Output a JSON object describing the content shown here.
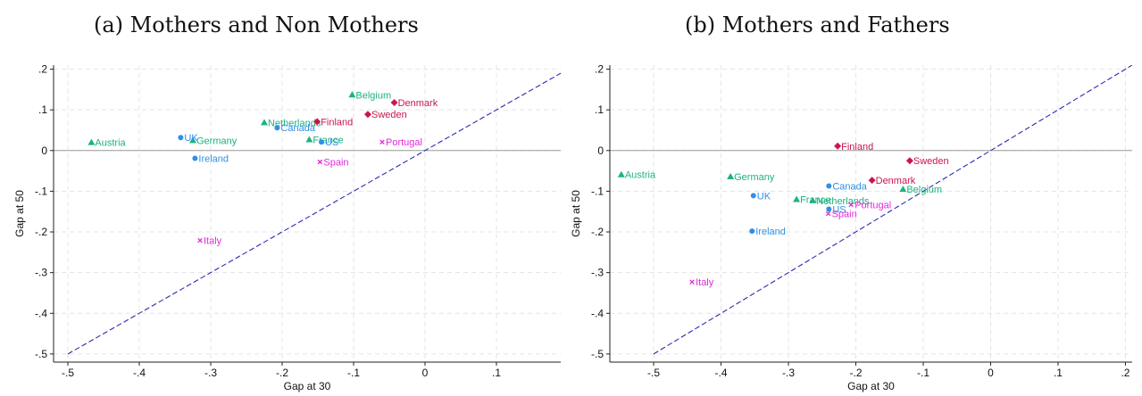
{
  "panels": [
    {
      "title": "(a) Mothers and Non Mothers"
    },
    {
      "title": "(b) Mothers and Fathers"
    }
  ],
  "colors": {
    "green": "#1bb37f",
    "blue": "#2f8fe6",
    "red": "#c8174c",
    "magenta": "#e12ad8",
    "diagonal": "#2b2bb0",
    "zero": "#9a9a9a",
    "grid": "#e4e4e4",
    "axis": "#222222"
  },
  "chart_data": [
    {
      "type": "scatter",
      "title": "(a) Mothers and Non Mothers",
      "xlabel": "Gap at 30",
      "ylabel": "Gap at 50",
      "xlim": [
        -0.52,
        0.19
      ],
      "ylim": [
        -0.52,
        0.21
      ],
      "xticks": [
        -0.5,
        -0.4,
        -0.3,
        -0.2,
        -0.1,
        0,
        0.1
      ],
      "xtick_labels": [
        "-.5",
        "-.4",
        "-.3",
        "-.2",
        "-.1",
        "0",
        ".1"
      ],
      "yticks": [
        -0.5,
        -0.4,
        -0.3,
        -0.2,
        -0.1,
        0,
        0.1,
        0.2
      ],
      "ytick_labels": [
        "-.5",
        "-.4",
        "-.3",
        "-.2",
        "-.1",
        "0",
        ".1",
        ".2"
      ],
      "grid": true,
      "zero_line": true,
      "diagonal_45": true,
      "points": [
        {
          "label": "Austria",
          "x": -0.467,
          "y": 0.02,
          "group": "green",
          "marker": "triangle"
        },
        {
          "label": "Belgium",
          "x": -0.102,
          "y": 0.137,
          "group": "green",
          "marker": "triangle"
        },
        {
          "label": "Netherlands",
          "x": -0.225,
          "y": 0.069,
          "group": "green",
          "marker": "triangle"
        },
        {
          "label": "Germany",
          "x": -0.325,
          "y": 0.025,
          "group": "green",
          "marker": "triangle"
        },
        {
          "label": "France",
          "x": -0.162,
          "y": 0.027,
          "group": "green",
          "marker": "triangle"
        },
        {
          "label": "UK",
          "x": -0.342,
          "y": 0.032,
          "group": "blue",
          "marker": "circle"
        },
        {
          "label": "Canada",
          "x": -0.207,
          "y": 0.056,
          "group": "blue",
          "marker": "circle"
        },
        {
          "label": "Ireland",
          "x": -0.322,
          "y": -0.019,
          "group": "blue",
          "marker": "circle"
        },
        {
          "label": "US",
          "x": -0.145,
          "y": 0.021,
          "group": "blue",
          "marker": "circle"
        },
        {
          "label": "Denmark",
          "x": -0.043,
          "y": 0.118,
          "group": "red",
          "marker": "diamond"
        },
        {
          "label": "Finland",
          "x": -0.151,
          "y": 0.071,
          "group": "red",
          "marker": "diamond"
        },
        {
          "label": "Sweden",
          "x": -0.08,
          "y": 0.089,
          "group": "red",
          "marker": "diamond"
        },
        {
          "label": "Portugal",
          "x": -0.06,
          "y": 0.021,
          "group": "magenta",
          "marker": "x"
        },
        {
          "label": "Spain",
          "x": -0.147,
          "y": -0.028,
          "group": "magenta",
          "marker": "x"
        },
        {
          "label": "Italy",
          "x": -0.315,
          "y": -0.221,
          "group": "magenta",
          "marker": "x"
        }
      ]
    },
    {
      "type": "scatter",
      "title": "(b) Mothers and Fathers",
      "xlabel": "Gap at 30",
      "ylabel": "Gap at 50",
      "xlim": [
        -0.565,
        0.21
      ],
      "ylim": [
        -0.52,
        0.21
      ],
      "xticks": [
        -0.5,
        -0.4,
        -0.3,
        -0.2,
        -0.1,
        0,
        0.1,
        0.2
      ],
      "xtick_labels": [
        "-.5",
        "-.4",
        "-.3",
        "-.2",
        "-.1",
        "0",
        ".1",
        ".2"
      ],
      "yticks": [
        -0.5,
        -0.4,
        -0.3,
        -0.2,
        -0.1,
        0,
        0.1,
        0.2
      ],
      "ytick_labels": [
        "-.5",
        "-.4",
        "-.3",
        "-.2",
        "-.1",
        "0",
        ".1",
        ".2"
      ],
      "grid": true,
      "zero_line": true,
      "diagonal_45": true,
      "points": [
        {
          "label": "Austria",
          "x": -0.548,
          "y": -0.059,
          "group": "green",
          "marker": "triangle"
        },
        {
          "label": "Germany",
          "x": -0.386,
          "y": -0.064,
          "group": "green",
          "marker": "triangle"
        },
        {
          "label": "Belgium",
          "x": -0.13,
          "y": -0.095,
          "group": "green",
          "marker": "triangle"
        },
        {
          "label": "France",
          "x": -0.288,
          "y": -0.12,
          "group": "green",
          "marker": "triangle"
        },
        {
          "label": "Netherlands",
          "x": -0.264,
          "y": -0.123,
          "group": "green",
          "marker": "triangle"
        },
        {
          "label": "Finland",
          "x": -0.227,
          "y": 0.011,
          "group": "red",
          "marker": "diamond"
        },
        {
          "label": "Sweden",
          "x": -0.12,
          "y": -0.025,
          "group": "red",
          "marker": "diamond"
        },
        {
          "label": "Denmark",
          "x": -0.176,
          "y": -0.073,
          "group": "red",
          "marker": "diamond"
        },
        {
          "label": "Canada",
          "x": -0.24,
          "y": -0.087,
          "group": "blue",
          "marker": "circle"
        },
        {
          "label": "UK",
          "x": -0.352,
          "y": -0.111,
          "group": "blue",
          "marker": "circle"
        },
        {
          "label": "US",
          "x": -0.24,
          "y": -0.144,
          "group": "blue",
          "marker": "circle"
        },
        {
          "label": "Ireland",
          "x": -0.354,
          "y": -0.198,
          "group": "blue",
          "marker": "circle"
        },
        {
          "label": "Portugal",
          "x": -0.207,
          "y": -0.133,
          "group": "magenta",
          "marker": "x"
        },
        {
          "label": "Spain",
          "x": -0.241,
          "y": -0.155,
          "group": "magenta",
          "marker": "x"
        },
        {
          "label": "Italy",
          "x": -0.443,
          "y": -0.323,
          "group": "magenta",
          "marker": "x"
        }
      ]
    }
  ]
}
